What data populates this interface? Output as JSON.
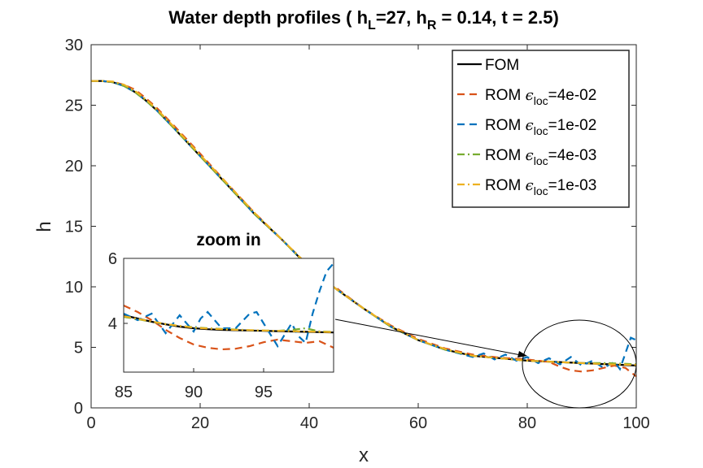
{
  "chart_data": {
    "type": "line",
    "title": {
      "prefix": "Water depth profiles ( h",
      "sub1": "L",
      "mid": "=27, h",
      "sub2": "R",
      "suffix": " = 0.14, t = 2.5)"
    },
    "xlabel": "x",
    "ylabel": "h",
    "xlim": [
      0,
      100
    ],
    "ylim": [
      0,
      30
    ],
    "xticks": [
      0,
      20,
      40,
      60,
      80,
      100
    ],
    "yticks": [
      0,
      5,
      10,
      15,
      20,
      25,
      30
    ],
    "legend": {
      "position": "top-right",
      "entries": [
        {
          "prefix": "FOM",
          "sub": "",
          "suffix": "",
          "eps": false
        },
        {
          "prefix": "ROM ",
          "eps": true,
          "sub": "loc",
          "suffix": "=4e-02"
        },
        {
          "prefix": "ROM ",
          "eps": true,
          "sub": "loc",
          "suffix": "=1e-02"
        },
        {
          "prefix": "ROM ",
          "eps": true,
          "sub": "loc",
          "suffix": "=4e-03"
        },
        {
          "prefix": "ROM ",
          "eps": true,
          "sub": "loc",
          "suffix": "=1e-03"
        }
      ]
    },
    "series": [
      {
        "name": "FOM",
        "color": "#000000",
        "dash": "solid",
        "x": [
          0,
          2,
          4,
          6,
          8,
          10,
          12,
          15,
          20,
          25,
          30,
          35,
          40,
          45,
          50,
          55,
          60,
          65,
          70,
          75,
          80,
          85,
          90,
          95,
          100
        ],
        "y": [
          27,
          27,
          26.9,
          26.6,
          26.1,
          25.4,
          24.6,
          23.2,
          20.8,
          18.4,
          16.0,
          13.9,
          11.6,
          9.8,
          8.2,
          6.7,
          5.6,
          4.8,
          4.3,
          4.1,
          3.9,
          3.8,
          3.7,
          3.6,
          3.5
        ]
      },
      {
        "name": "ROM eps_loc=4e-02",
        "color": "#D95319",
        "dash": "dash",
        "x": [
          0,
          2,
          4,
          6,
          8,
          10,
          12,
          15,
          20,
          25,
          30,
          35,
          40,
          45,
          50,
          55,
          60,
          65,
          70,
          75,
          80,
          84,
          86,
          88,
          90,
          92,
          94,
          96,
          98,
          100
        ],
        "y": [
          27,
          27,
          26.9,
          26.7,
          26.3,
          25.6,
          24.8,
          23.4,
          21.0,
          18.5,
          16.1,
          13.9,
          11.7,
          9.9,
          8.2,
          6.8,
          5.7,
          4.9,
          4.4,
          4.15,
          4.0,
          3.8,
          3.4,
          3.1,
          3.0,
          3.1,
          3.3,
          3.5,
          3.3,
          2.6
        ]
      },
      {
        "name": "ROM eps_loc=1e-02",
        "color": "#0072BD",
        "dash": "dash",
        "x": [
          0,
          2,
          4,
          6,
          8,
          10,
          12,
          15,
          20,
          25,
          30,
          35,
          40,
          45,
          50,
          55,
          60,
          65,
          70,
          72,
          74,
          76,
          78,
          80,
          82,
          84,
          86,
          88,
          90,
          92,
          94,
          96,
          97,
          98,
          99,
          100
        ],
        "y": [
          27,
          27,
          26.9,
          26.6,
          26.1,
          25.4,
          24.6,
          23.2,
          20.8,
          18.4,
          16.0,
          13.9,
          11.6,
          9.8,
          8.2,
          6.7,
          5.6,
          4.8,
          4.2,
          4.5,
          4.0,
          4.4,
          3.9,
          4.2,
          3.7,
          4.1,
          3.6,
          4.2,
          3.5,
          3.9,
          3.3,
          3.8,
          3.2,
          4.5,
          5.8,
          5.6
        ]
      },
      {
        "name": "ROM eps_loc=4e-03",
        "color": "#77AC30",
        "dash": "dashdot",
        "x": [
          0,
          2,
          4,
          6,
          8,
          10,
          12,
          15,
          20,
          25,
          30,
          35,
          40,
          45,
          50,
          55,
          60,
          65,
          70,
          75,
          80,
          85,
          90,
          95,
          100
        ],
        "y": [
          27,
          27,
          26.9,
          26.6,
          26.1,
          25.4,
          24.6,
          23.2,
          20.8,
          18.4,
          16.0,
          13.9,
          11.6,
          9.8,
          8.2,
          6.7,
          5.6,
          4.8,
          4.3,
          4.1,
          3.9,
          3.8,
          3.7,
          3.7,
          3.6
        ]
      },
      {
        "name": "ROM eps_loc=1e-03",
        "color": "#EDB120",
        "dash": "dashdot",
        "x": [
          0,
          2,
          4,
          6,
          8,
          10,
          12,
          15,
          20,
          25,
          30,
          35,
          40,
          45,
          50,
          55,
          60,
          65,
          70,
          75,
          80,
          85,
          90,
          95,
          100
        ],
        "y": [
          27,
          27,
          26.95,
          26.7,
          26.2,
          25.5,
          24.7,
          23.3,
          20.9,
          18.5,
          16.1,
          13.9,
          11.7,
          9.8,
          8.2,
          6.75,
          5.6,
          4.85,
          4.3,
          4.1,
          3.9,
          3.8,
          3.7,
          3.6,
          3.55
        ]
      }
    ],
    "inset": {
      "title": "zoom in",
      "xlim": [
        85,
        100
      ],
      "ylim": [
        2.5,
        6
      ],
      "xticks": [
        85,
        90,
        95
      ],
      "yticks": [
        4,
        6
      ],
      "series": [
        {
          "name": "FOM",
          "color": "#000000",
          "dash": "solid",
          "x": [
            85,
            86,
            87,
            88,
            89,
            90,
            91,
            92,
            93,
            94,
            95,
            96,
            97,
            98,
            99,
            100
          ],
          "y": [
            4.25,
            4.15,
            4.05,
            3.97,
            3.9,
            3.85,
            3.82,
            3.8,
            3.79,
            3.78,
            3.77,
            3.76,
            3.75,
            3.74,
            3.73,
            3.72
          ]
        },
        {
          "name": "ROM eps_loc=4e-02",
          "color": "#D95319",
          "dash": "dash",
          "x": [
            85,
            86,
            87,
            88,
            89,
            90,
            91,
            92,
            93,
            94,
            95,
            96,
            97,
            98,
            99,
            100
          ],
          "y": [
            4.55,
            4.35,
            4.1,
            3.8,
            3.55,
            3.35,
            3.25,
            3.2,
            3.22,
            3.3,
            3.42,
            3.5,
            3.45,
            3.4,
            3.45,
            3.25
          ]
        },
        {
          "name": "ROM eps_loc=1e-02",
          "color": "#0072BD",
          "dash": "dash",
          "x": [
            85,
            86,
            87,
            88,
            89,
            90,
            90.5,
            91,
            92,
            93,
            94,
            94.5,
            95,
            96,
            97,
            97.5,
            98,
            98.5,
            99,
            99.5,
            100
          ],
          "y": [
            4.3,
            4.1,
            4.3,
            3.7,
            4.25,
            3.75,
            4.15,
            4.35,
            3.85,
            3.85,
            4.3,
            4.35,
            4.0,
            3.3,
            4.0,
            3.6,
            3.4,
            4.3,
            5.0,
            5.6,
            5.85
          ]
        },
        {
          "name": "ROM eps_loc=4e-03",
          "color": "#77AC30",
          "dash": "dashdot",
          "x": [
            85,
            86,
            87,
            88,
            89,
            90,
            91,
            92,
            93,
            94,
            95,
            96,
            97,
            98,
            99,
            100
          ],
          "y": [
            4.2,
            4.13,
            4.05,
            3.98,
            3.92,
            3.88,
            3.85,
            3.83,
            3.81,
            3.79,
            3.78,
            3.77,
            3.8,
            3.85,
            3.75,
            3.74
          ]
        },
        {
          "name": "ROM eps_loc=1e-03",
          "color": "#EDB120",
          "dash": "dashdot",
          "x": [
            85,
            86,
            87,
            88,
            89,
            90,
            91,
            92,
            93,
            94,
            95,
            96,
            97,
            98,
            99,
            100
          ],
          "y": [
            4.22,
            4.14,
            4.06,
            3.98,
            3.92,
            3.87,
            3.84,
            3.82,
            3.8,
            3.79,
            3.78,
            3.77,
            3.76,
            3.75,
            3.74,
            3.73
          ]
        }
      ]
    },
    "annotation": {
      "type": "ellipse-with-arrow",
      "center_x": 90,
      "center_y": 3.8,
      "target": "inset"
    }
  }
}
